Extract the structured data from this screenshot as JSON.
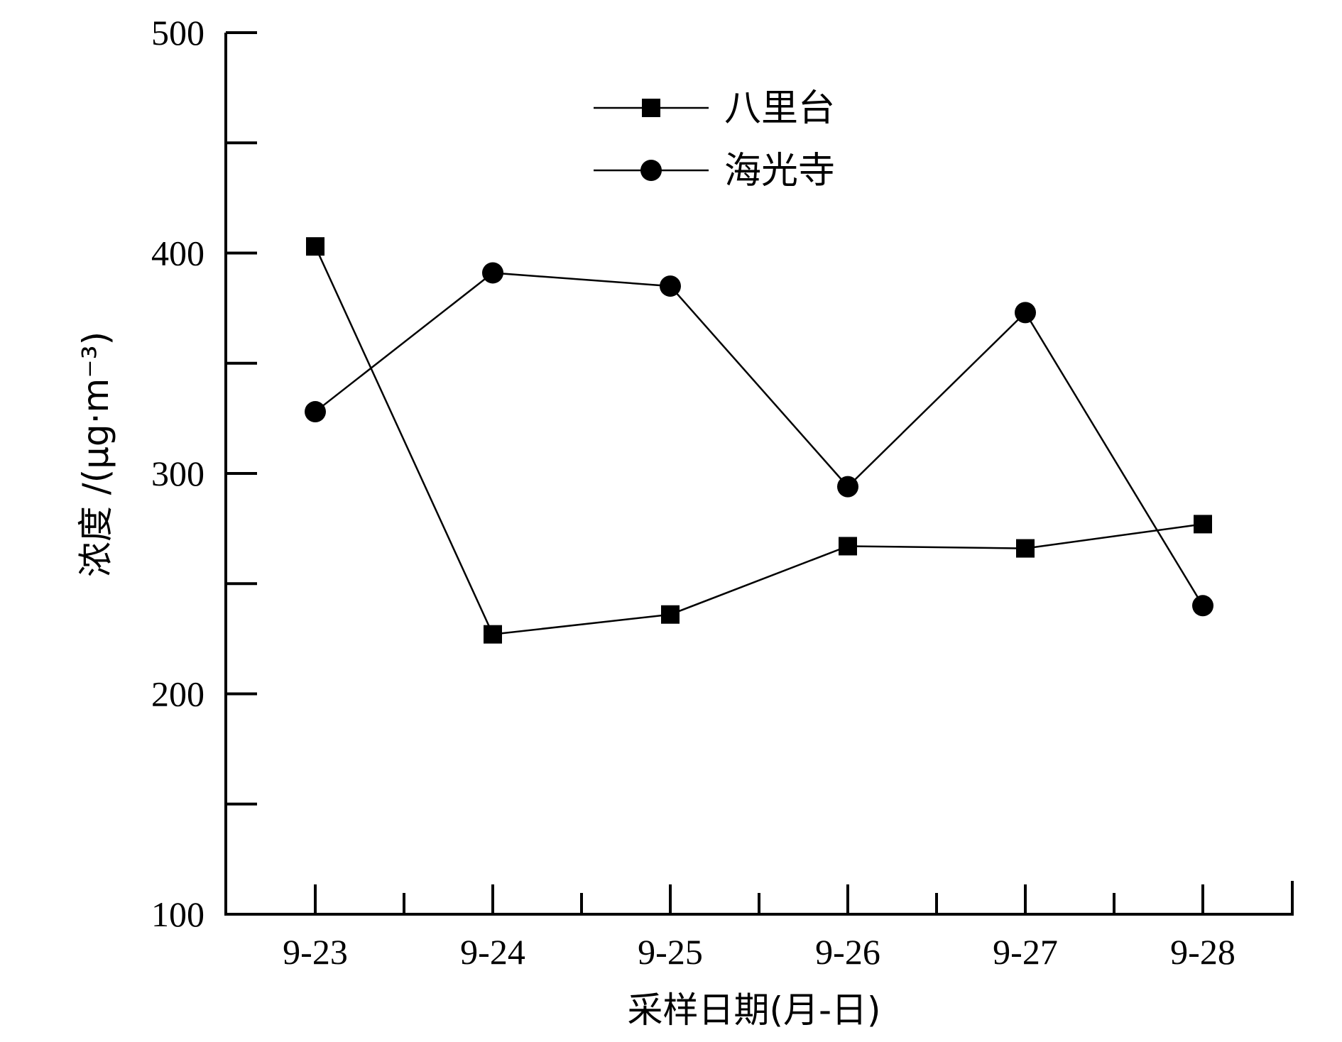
{
  "chart_data": {
    "type": "line",
    "title": "",
    "xlabel": "采样日期(月-日)",
    "ylabel": "浓度 /(μg·m⁻³)",
    "categories": [
      "9-23",
      "9-24",
      "9-25",
      "9-26",
      "9-27",
      "9-28"
    ],
    "ylim": [
      100,
      500
    ],
    "yticks": [
      100,
      200,
      300,
      400,
      500
    ],
    "grid": false,
    "legend_position": "top-center",
    "series": [
      {
        "name": "八里台",
        "marker": "square",
        "color": "#000000",
        "values": [
          403,
          227,
          236,
          267,
          266,
          277
        ]
      },
      {
        "name": "海光寺",
        "marker": "circle",
        "color": "#000000",
        "values": [
          328,
          391,
          385,
          294,
          373,
          240
        ]
      }
    ]
  }
}
